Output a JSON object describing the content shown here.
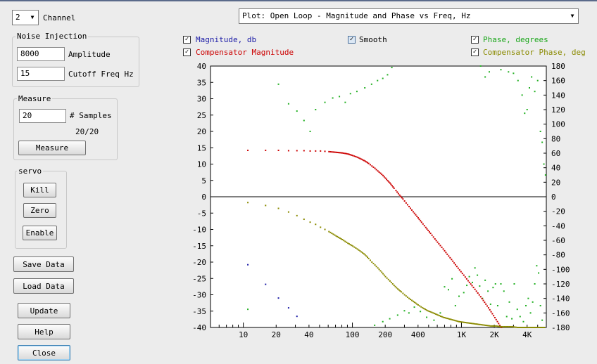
{
  "channel": {
    "value": "2",
    "label": "Channel"
  },
  "plot_select": {
    "value": "Plot: Open Loop - Magnitude and Phase vs Freq, Hz"
  },
  "noise_injection": {
    "title": "Noise Injection",
    "amplitude_value": "8000",
    "amplitude_label": "Amplitude",
    "cutoff_value": "15",
    "cutoff_label": "Cutoff Freq Hz"
  },
  "measure": {
    "title": "Measure",
    "samples_value": "20",
    "samples_label": "# Samples",
    "progress": "20/20",
    "button": "Measure"
  },
  "servo": {
    "title": "servo",
    "kill": "Kill",
    "zero": "Zero",
    "enable": "Enable"
  },
  "buttons": {
    "save": "Save Data",
    "load": "Load Data",
    "update": "Update",
    "help": "Help",
    "close": "Close"
  },
  "checkboxes": {
    "magnitude": {
      "label": "Magnitude, db",
      "checked": true,
      "color": "#1a1aa6"
    },
    "smooth": {
      "label": "Smooth",
      "checked": true,
      "color": "#000000"
    },
    "phase": {
      "label": "Phase, degrees",
      "checked": true,
      "color": "#1aa61a"
    },
    "comp_magnitude": {
      "label": "Compensator Magnitude",
      "checked": true,
      "color": "#cc0000"
    },
    "comp_phase": {
      "label": "Compensator Phase, deg",
      "checked": true,
      "color": "#8a8a00"
    }
  },
  "chart_data": {
    "type": "scatter",
    "x_scale": "log",
    "xlim": [
      5,
      6000
    ],
    "x_ticks": [
      {
        "v": 10,
        "label": "10"
      },
      {
        "v": 20,
        "label": "20"
      },
      {
        "v": 40,
        "label": "40"
      },
      {
        "v": 100,
        "label": "100"
      },
      {
        "v": 200,
        "label": "200"
      },
      {
        "v": 400,
        "label": "400"
      },
      {
        "v": 1000,
        "label": "1K"
      },
      {
        "v": 2000,
        "label": "2K"
      },
      {
        "v": 4000,
        "label": "4K"
      }
    ],
    "ylim_left": [
      -40,
      40
    ],
    "y_ticks_left": [
      -40,
      -35,
      -30,
      -25,
      -20,
      -15,
      -10,
      -5,
      0,
      5,
      10,
      15,
      20,
      25,
      30,
      35,
      40
    ],
    "ylim_right": [
      -180,
      180
    ],
    "y_ticks_right": [
      -180,
      -160,
      -140,
      -120,
      -100,
      -80,
      -60,
      -40,
      -20,
      0,
      20,
      40,
      60,
      80,
      100,
      120,
      140,
      160,
      180
    ],
    "zero_line": 0,
    "series": [
      {
        "name": "Magnitude, db",
        "axis": "left",
        "color": "#1a1aa6",
        "points": [
          [
            11,
            -20.8
          ],
          [
            16,
            -26.8
          ],
          [
            21,
            -31
          ],
          [
            26,
            -34
          ],
          [
            31,
            -36.6
          ]
        ]
      },
      {
        "name": "Phase, degrees",
        "axis": "right",
        "color": "#22b022",
        "points": [
          [
            11,
            -155
          ],
          [
            21,
            155
          ],
          [
            26,
            128
          ],
          [
            31,
            118
          ],
          [
            36,
            105
          ],
          [
            41,
            90
          ],
          [
            46,
            120
          ],
          [
            56,
            130
          ],
          [
            66,
            136
          ],
          [
            76,
            138
          ],
          [
            86,
            130
          ],
          [
            96,
            142
          ],
          [
            110,
            145
          ],
          [
            130,
            150
          ],
          [
            150,
            155
          ],
          [
            170,
            160
          ],
          [
            190,
            163
          ],
          [
            210,
            168
          ],
          [
            230,
            178
          ],
          [
            1500,
            180
          ],
          [
            1650,
            165
          ],
          [
            1800,
            172
          ],
          [
            2300,
            175
          ],
          [
            2700,
            172
          ],
          [
            3000,
            170
          ],
          [
            3300,
            160
          ],
          [
            3600,
            140
          ],
          [
            3800,
            115
          ],
          [
            4000,
            120
          ],
          [
            4200,
            150
          ],
          [
            4400,
            165
          ],
          [
            4700,
            145
          ],
          [
            5000,
            160
          ],
          [
            5300,
            90
          ],
          [
            5500,
            75
          ],
          [
            5700,
            45
          ],
          [
            5900,
            30
          ],
          [
            160,
            -177
          ],
          [
            190,
            -172
          ],
          [
            220,
            -168
          ],
          [
            260,
            -163
          ],
          [
            300,
            -157
          ],
          [
            330,
            -160
          ],
          [
            370,
            -152
          ],
          [
            420,
            -158
          ],
          [
            480,
            -166
          ],
          [
            560,
            -170
          ],
          [
            640,
            -160
          ],
          [
            700,
            -124
          ],
          [
            760,
            -128
          ],
          [
            820,
            -113
          ],
          [
            880,
            -150
          ],
          [
            950,
            -137
          ],
          [
            1050,
            -132
          ],
          [
            1120,
            -122
          ],
          [
            1180,
            -110
          ],
          [
            1260,
            -118
          ],
          [
            1330,
            -98
          ],
          [
            1400,
            -108
          ],
          [
            1470,
            -123
          ],
          [
            1560,
            -140
          ],
          [
            1650,
            -115
          ],
          [
            1750,
            -130
          ],
          [
            1850,
            -148
          ],
          [
            1950,
            -125
          ],
          [
            2050,
            -120
          ],
          [
            2150,
            -150
          ],
          [
            2300,
            -120
          ],
          [
            2450,
            -130
          ],
          [
            2600,
            -165
          ],
          [
            2750,
            -145
          ],
          [
            2900,
            -168
          ],
          [
            3050,
            -120
          ],
          [
            3250,
            -155
          ],
          [
            3450,
            -165
          ],
          [
            3700,
            -172
          ],
          [
            3900,
            -150
          ],
          [
            4100,
            -140
          ],
          [
            4300,
            -160
          ],
          [
            4500,
            -145
          ],
          [
            4700,
            -120
          ],
          [
            4900,
            -95
          ],
          [
            5100,
            -105
          ],
          [
            5300,
            -150
          ],
          [
            5500,
            -170
          ]
        ]
      },
      {
        "name": "Compensator Magnitude",
        "axis": "left",
        "color": "#cc0000",
        "points": [
          [
            11,
            14.2
          ],
          [
            16,
            14.2
          ],
          [
            21,
            14.2
          ],
          [
            26,
            14.1
          ],
          [
            31,
            14.1
          ],
          [
            36,
            14.1
          ],
          [
            41,
            14
          ],
          [
            46,
            14
          ],
          [
            51,
            14
          ],
          [
            56,
            13.9
          ],
          [
            61,
            13.8
          ],
          [
            71,
            13.6
          ],
          [
            81,
            13.4
          ],
          [
            91,
            13.1
          ],
          [
            101,
            12.6
          ],
          [
            111,
            12.1
          ],
          [
            121,
            11.5
          ],
          [
            131,
            10.9
          ],
          [
            141,
            10.2
          ],
          [
            151,
            9.4
          ],
          [
            161,
            8.7
          ],
          [
            171,
            7.9
          ],
          [
            181,
            7.2
          ],
          [
            191,
            6.5
          ],
          [
            201,
            5.7
          ],
          [
            211,
            4.9
          ],
          [
            221,
            4.2
          ],
          [
            231,
            3.4
          ],
          [
            241,
            2.6
          ],
          [
            251,
            1.9
          ],
          [
            271,
            0.5
          ],
          [
            291,
            -0.7
          ],
          [
            311,
            -1.9
          ],
          [
            331,
            -3.0
          ],
          [
            361,
            -4.6
          ],
          [
            391,
            -6.0
          ],
          [
            431,
            -7.8
          ],
          [
            471,
            -9.4
          ],
          [
            521,
            -11.2
          ],
          [
            571,
            -12.9
          ],
          [
            621,
            -14.4
          ],
          [
            681,
            -16.0
          ],
          [
            741,
            -17.6
          ],
          [
            811,
            -19.2
          ],
          [
            881,
            -20.8
          ],
          [
            961,
            -22.4
          ],
          [
            1051,
            -24.0
          ],
          [
            1151,
            -25.7
          ],
          [
            1251,
            -27.2
          ],
          [
            1371,
            -28.9
          ],
          [
            1501,
            -30.6
          ],
          [
            1631,
            -32.3
          ],
          [
            1771,
            -34.0
          ],
          [
            1921,
            -35.8
          ],
          [
            2081,
            -37.6
          ],
          [
            2251,
            -39.4
          ],
          [
            2330,
            -40
          ]
        ]
      },
      {
        "name": "Compensator Phase, deg",
        "axis": "right",
        "color": "#8a8a00",
        "points": [
          [
            11,
            -8
          ],
          [
            16,
            -12
          ],
          [
            21,
            -16
          ],
          [
            26,
            -21
          ],
          [
            31,
            -26
          ],
          [
            36,
            -31
          ],
          [
            41,
            -35
          ],
          [
            46,
            -38
          ],
          [
            51,
            -42
          ],
          [
            56,
            -45
          ],
          [
            61,
            -48
          ],
          [
            71,
            -54
          ],
          [
            81,
            -59
          ],
          [
            91,
            -64
          ],
          [
            101,
            -68
          ],
          [
            111,
            -72
          ],
          [
            121,
            -76
          ],
          [
            131,
            -80
          ],
          [
            141,
            -85
          ],
          [
            151,
            -90
          ],
          [
            161,
            -94
          ],
          [
            171,
            -98
          ],
          [
            181,
            -102
          ],
          [
            191,
            -106
          ],
          [
            201,
            -110
          ],
          [
            221,
            -116
          ],
          [
            241,
            -122
          ],
          [
            261,
            -127
          ],
          [
            281,
            -131
          ],
          [
            301,
            -135
          ],
          [
            331,
            -140
          ],
          [
            361,
            -144
          ],
          [
            401,
            -149
          ],
          [
            441,
            -153
          ],
          [
            491,
            -157
          ],
          [
            551,
            -160
          ],
          [
            611,
            -163
          ],
          [
            681,
            -166
          ],
          [
            761,
            -168
          ],
          [
            851,
            -170
          ],
          [
            951,
            -172
          ],
          [
            1061,
            -173
          ],
          [
            1181,
            -174
          ],
          [
            1321,
            -175
          ],
          [
            1481,
            -176
          ],
          [
            1661,
            -177
          ],
          [
            1861,
            -178
          ],
          [
            2081,
            -178
          ],
          [
            2331,
            -179
          ],
          [
            2611,
            -179
          ],
          [
            2921,
            -179
          ],
          [
            3271,
            -180
          ],
          [
            3661,
            -180
          ],
          [
            4101,
            -180
          ],
          [
            4591,
            -180
          ],
          [
            5141,
            -180
          ],
          [
            5751,
            -180
          ]
        ]
      }
    ]
  }
}
